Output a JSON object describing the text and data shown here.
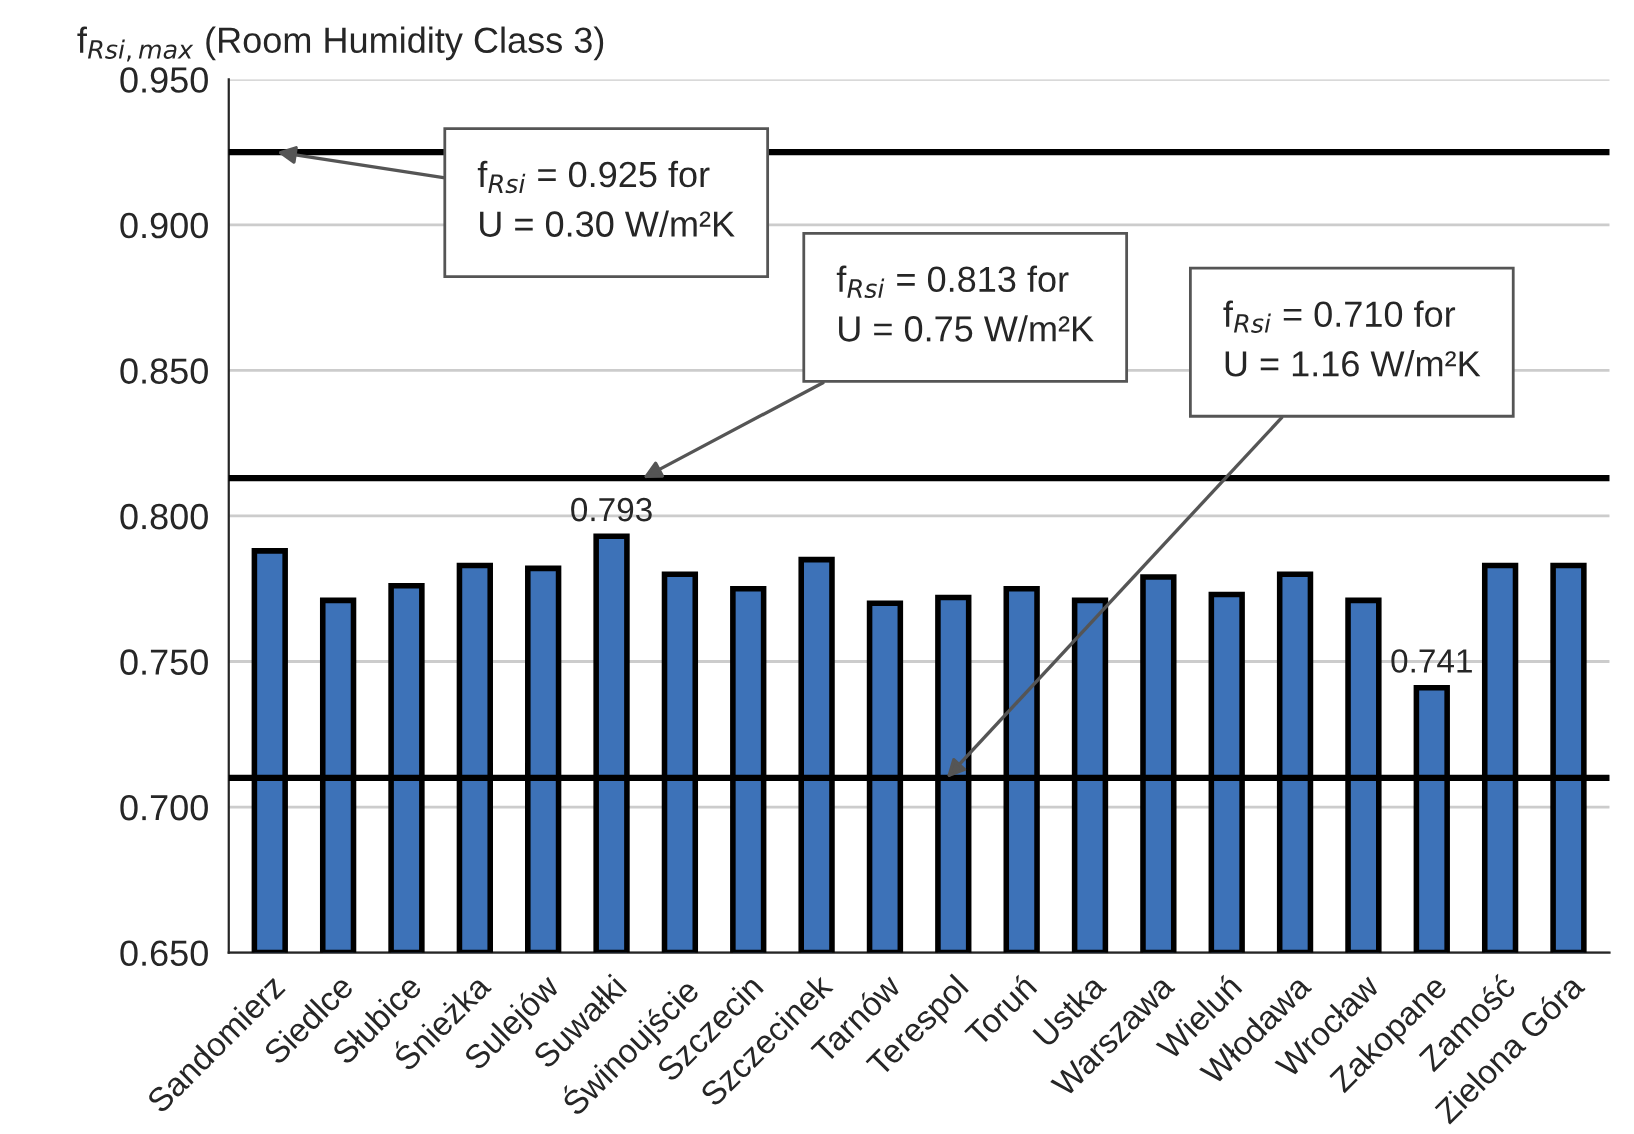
{
  "chart_data": {
    "type": "bar",
    "ylabel": "f$_{Rsi,max}$ (Room Humidity Class 3)",
    "categories": [
      "Sandomierz",
      "Siedlce",
      "Słubice",
      "Śnieżka",
      "Sulejów",
      "Suwałki",
      "Świnoujście",
      "Szczecin",
      "Szczecinek",
      "Tarnów",
      "Terespol",
      "Toruń",
      "Ustka",
      "Warszawa",
      "Wieluń",
      "Włodawa",
      "Wrocław",
      "Zakopane",
      "Zamość",
      "Zielona Góra"
    ],
    "values": [
      0.788,
      0.771,
      0.776,
      0.783,
      0.782,
      0.793,
      0.78,
      0.775,
      0.785,
      0.77,
      0.772,
      0.775,
      0.771,
      0.779,
      0.773,
      0.78,
      0.771,
      0.741,
      0.783,
      0.783
    ],
    "value_labels": [
      null,
      null,
      null,
      null,
      null,
      "0.793",
      null,
      null,
      null,
      null,
      null,
      null,
      null,
      null,
      null,
      null,
      null,
      "0.741",
      null,
      null
    ],
    "color": "#3d72b8",
    "ylim": [
      0.65,
      0.95
    ],
    "yticks": [
      {
        "value": 0.65,
        "label": "0.650"
      },
      {
        "value": 0.7,
        "label": "0.700"
      },
      {
        "value": 0.75,
        "label": "0.750"
      },
      {
        "value": 0.8,
        "label": "0.800"
      },
      {
        "value": 0.85,
        "label": "0.850"
      },
      {
        "value": 0.9,
        "label": "0.900"
      },
      {
        "value": 0.95,
        "label": "0.950"
      }
    ],
    "ref_lines": [
      {
        "axis": "y",
        "value": 0.925,
        "label": "f$_{Rsi}$ = 0.925 for\nU = 0.30 W/m²K",
        "color": "#000000"
      },
      {
        "axis": "y",
        "value": 0.813,
        "label": "f$_{Rsi}$ = 0.813 for\nU = 0.75 W/m²K",
        "color": "#000000"
      },
      {
        "axis": "y",
        "value": 0.71,
        "label": "f$_{Rsi}$ = 0.710 for\nU = 1.16 W/m²K",
        "color": "#000000"
      }
    ],
    "grid": "y",
    "legend": false
  }
}
